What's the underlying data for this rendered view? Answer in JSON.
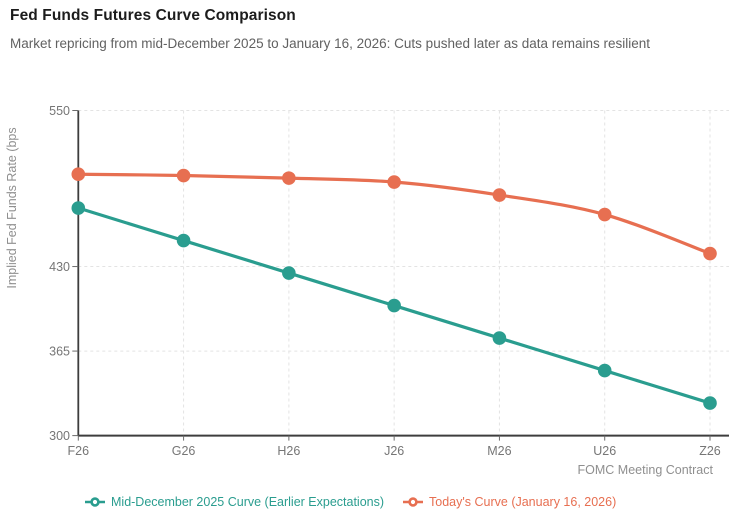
{
  "header": {
    "title": "Fed Funds Futures Curve Comparison",
    "subtitle": "Market repricing from mid-December 2025 to January 16, 2026: Cuts pushed later as data remains resilient"
  },
  "chart_data": {
    "type": "line",
    "title": "Fed Funds Futures Curve Comparison",
    "categories": [
      "F26",
      "G26",
      "H26",
      "J26",
      "M26",
      "U26",
      "Z26"
    ],
    "series": [
      {
        "name": "Mid-December 2025 Curve (Earlier Expectations)",
        "color": "#2a9d8f",
        "values": [
          475,
          450,
          425,
          400,
          375,
          350,
          325
        ]
      },
      {
        "name": "Today's Curve (January 16, 2026)",
        "color": "#e76f51",
        "values": [
          501,
          500,
          498,
          495,
          485,
          470,
          440
        ]
      }
    ],
    "xlabel": "FOMC Meeting Contract",
    "ylabel": "Implied Fed Funds Rate (bps",
    "yticks": [
      300,
      365,
      430,
      550
    ],
    "ylim": [
      300,
      550
    ],
    "grid": "dashed-both-axes",
    "legend_position": "bottom",
    "marker": "filled-circle"
  }
}
